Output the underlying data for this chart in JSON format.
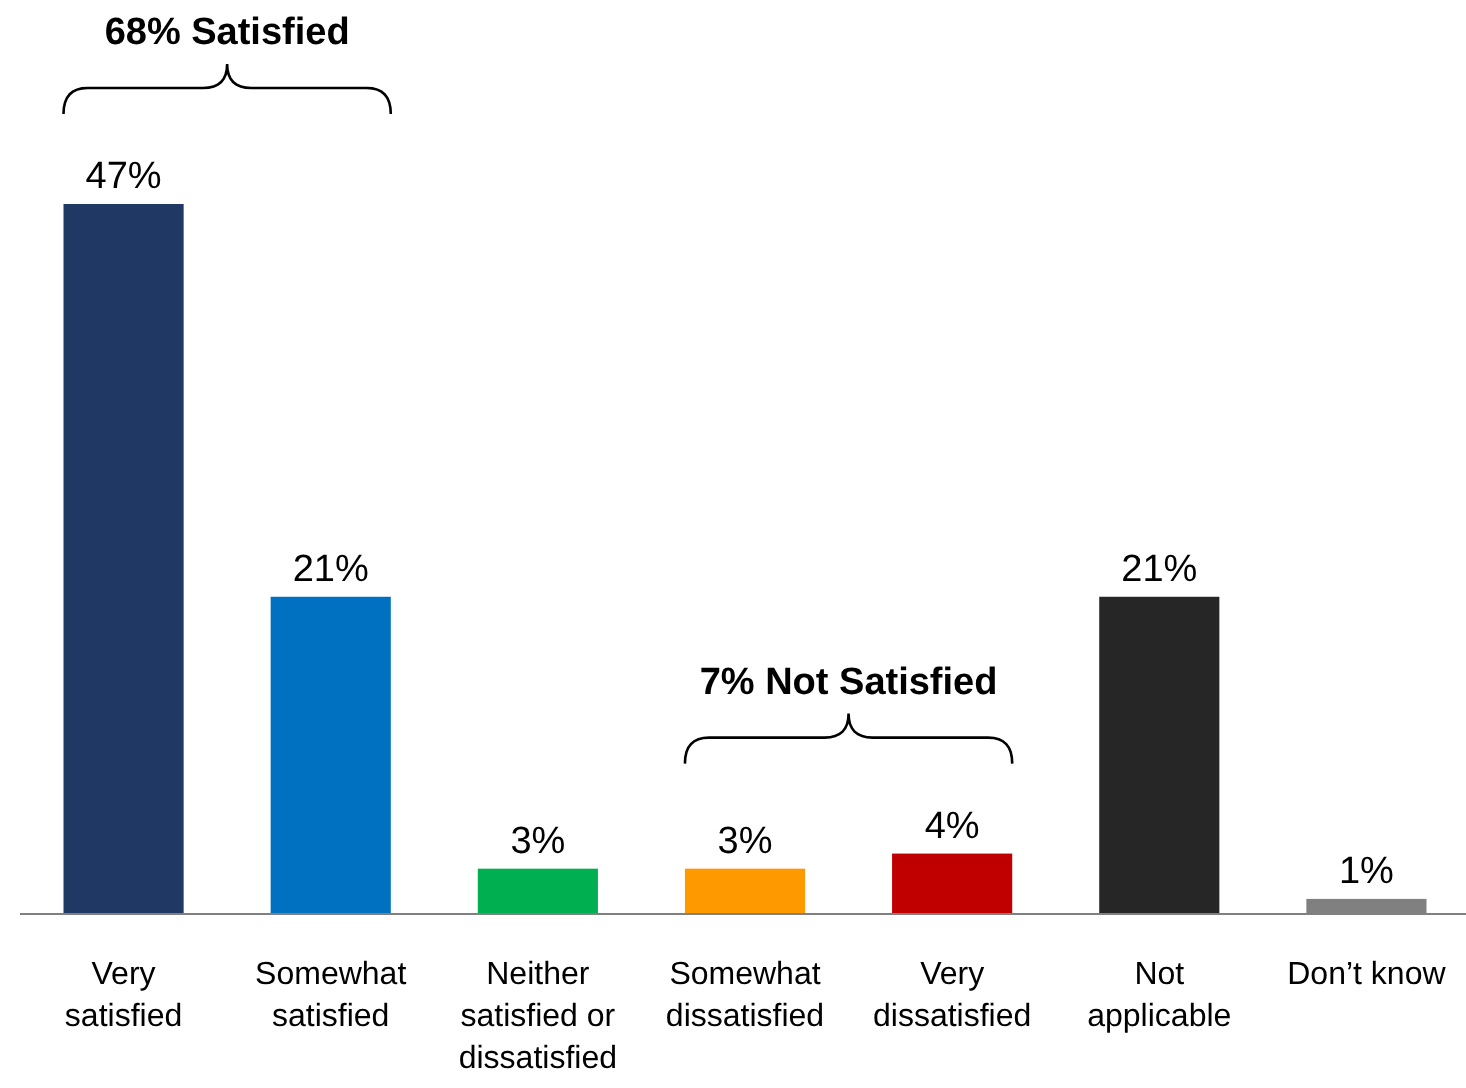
{
  "chart_data": {
    "type": "bar",
    "categories": [
      "Very satisfied",
      "Somewhat satisfied",
      "Neither satisfied or dissatisfied",
      "Somewhat dissatisfied",
      "Very dissatisfied",
      "Not applicable",
      "Don’t know"
    ],
    "values": [
      47,
      21,
      3,
      3,
      4,
      21,
      1
    ],
    "colors": [
      "#1f3864",
      "#0070c0",
      "#00b050",
      "#ff9900",
      "#c00000",
      "#262626",
      "#808080"
    ],
    "value_labels": [
      "47%",
      "21%",
      "3%",
      "3%",
      "4%",
      "21%",
      "1%"
    ],
    "annotations": [
      "68% Satisfied",
      "7% Not Satisfied"
    ]
  }
}
